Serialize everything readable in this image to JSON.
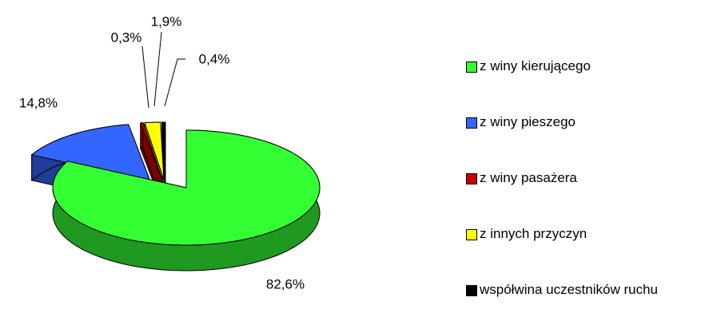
{
  "chart_data": {
    "type": "pie",
    "categories": [
      "z winy kierującego",
      "z winy pieszego",
      "z winy pasażera",
      "z innych przyczyn",
      "współwina uczestników ruchu"
    ],
    "values": [
      82.6,
      14.8,
      0.3,
      1.9,
      0.4
    ],
    "value_labels": [
      "82,6%",
      "14,8%",
      "0,3%",
      "1,9%",
      "0,4%"
    ],
    "colors": [
      "#33ff33",
      "#3366ff",
      "#cc0000",
      "#ffff00",
      "#000000"
    ],
    "legend": "right"
  }
}
